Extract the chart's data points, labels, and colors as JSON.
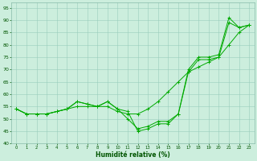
{
  "xlabel": "Humidité relative (%)",
  "xlim": [
    -0.5,
    23.5
  ],
  "ylim": [
    40,
    97
  ],
  "yticks": [
    40,
    45,
    50,
    55,
    60,
    65,
    70,
    75,
    80,
    85,
    90,
    95
  ],
  "xticks": [
    0,
    1,
    2,
    3,
    4,
    5,
    6,
    7,
    8,
    9,
    10,
    11,
    12,
    13,
    14,
    15,
    16,
    17,
    18,
    19,
    20,
    21,
    22,
    23
  ],
  "bg_color": "#cceedd",
  "grid_color": "#99ccbb",
  "line_color": "#00aa00",
  "line1": [
    54,
    52,
    52,
    52,
    53,
    54,
    57,
    56,
    55,
    57,
    54,
    53,
    45,
    46,
    48,
    48,
    52,
    70,
    75,
    75,
    76,
    91,
    87,
    88
  ],
  "line2": [
    54,
    52,
    52,
    52,
    53,
    54,
    57,
    56,
    55,
    57,
    54,
    50,
    46,
    47,
    49,
    49,
    52,
    69,
    74,
    74,
    75,
    89,
    87,
    88
  ],
  "line3": [
    54,
    52,
    52,
    52,
    53,
    54,
    55,
    55,
    55,
    55,
    53,
    52,
    52,
    54,
    57,
    61,
    65,
    69,
    71,
    73,
    75,
    80,
    85,
    88
  ]
}
